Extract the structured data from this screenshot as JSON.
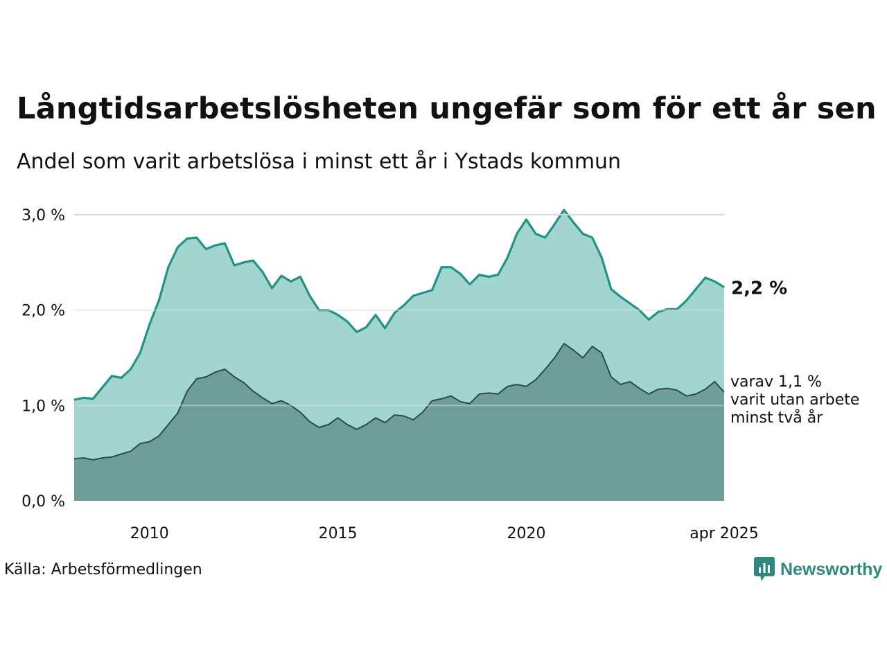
{
  "title": "Långtidsarbetslösheten ungefär som för ett år sen",
  "subtitle": "Andel som varit arbetslösa i minst ett år i Ystads kommun",
  "source": "Källa: Arbetsförmedlingen",
  "logo": {
    "text": "Newsworthy",
    "icon": "bar-chart-speech-bubble-icon",
    "color": "#2e8a7e"
  },
  "colors": {
    "total_line": "#1f9484",
    "total_fill": "#a3d5d0",
    "two_year_line": "#2a4b47",
    "two_year_fill": "#6f9d97",
    "grid": "#d9d9d9"
  },
  "chart_data": {
    "type": "area",
    "xlim": [
      "2008-01",
      "2025-04"
    ],
    "ylim": [
      0,
      3.0
    ],
    "x_ticks": [
      {
        "x": "2010-01",
        "label": "2010"
      },
      {
        "x": "2015-01",
        "label": "2015"
      },
      {
        "x": "2020-01",
        "label": "2020"
      },
      {
        "x": "2025-04",
        "label": "apr 2025"
      }
    ],
    "y_ticks": [
      {
        "y": 0,
        "label": "0,0 %"
      },
      {
        "y": 1,
        "label": "1,0 %"
      },
      {
        "y": 2,
        "label": "2,0 %"
      },
      {
        "y": 3,
        "label": "3,0 %"
      }
    ],
    "grid": true,
    "series": [
      {
        "end_label": "2,2 %",
        "points": [
          [
            "2008-01",
            1.06
          ],
          [
            "2008-04",
            1.08
          ],
          [
            "2008-07",
            1.07
          ],
          [
            "2008-10",
            1.19
          ],
          [
            "2009-01",
            1.31
          ],
          [
            "2009-04",
            1.29
          ],
          [
            "2009-07",
            1.38
          ],
          [
            "2009-10",
            1.55
          ],
          [
            "2010-01",
            1.85
          ],
          [
            "2010-04",
            2.1
          ],
          [
            "2010-07",
            2.45
          ],
          [
            "2010-10",
            2.66
          ],
          [
            "2011-01",
            2.75
          ],
          [
            "2011-04",
            2.76
          ],
          [
            "2011-07",
            2.64
          ],
          [
            "2011-10",
            2.68
          ],
          [
            "2012-01",
            2.7
          ],
          [
            "2012-04",
            2.47
          ],
          [
            "2012-07",
            2.5
          ],
          [
            "2012-10",
            2.52
          ],
          [
            "2013-01",
            2.4
          ],
          [
            "2013-04",
            2.23
          ],
          [
            "2013-07",
            2.36
          ],
          [
            "2013-10",
            2.3
          ],
          [
            "2014-01",
            2.35
          ],
          [
            "2014-04",
            2.15
          ],
          [
            "2014-07",
            2.0
          ],
          [
            "2014-10",
            2.0
          ],
          [
            "2015-01",
            1.95
          ],
          [
            "2015-04",
            1.88
          ],
          [
            "2015-07",
            1.77
          ],
          [
            "2015-10",
            1.82
          ],
          [
            "2016-01",
            1.95
          ],
          [
            "2016-04",
            1.81
          ],
          [
            "2016-07",
            1.97
          ],
          [
            "2016-10",
            2.05
          ],
          [
            "2017-01",
            2.15
          ],
          [
            "2017-04",
            2.18
          ],
          [
            "2017-07",
            2.21
          ],
          [
            "2017-10",
            2.45
          ],
          [
            "2018-01",
            2.45
          ],
          [
            "2018-04",
            2.38
          ],
          [
            "2018-07",
            2.27
          ],
          [
            "2018-10",
            2.37
          ],
          [
            "2019-01",
            2.35
          ],
          [
            "2019-04",
            2.37
          ],
          [
            "2019-07",
            2.55
          ],
          [
            "2019-10",
            2.8
          ],
          [
            "2020-01",
            2.95
          ],
          [
            "2020-04",
            2.8
          ],
          [
            "2020-07",
            2.76
          ],
          [
            "2020-10",
            2.9
          ],
          [
            "2021-01",
            3.05
          ],
          [
            "2021-04",
            2.92
          ],
          [
            "2021-07",
            2.8
          ],
          [
            "2021-10",
            2.76
          ],
          [
            "2022-01",
            2.55
          ],
          [
            "2022-04",
            2.22
          ],
          [
            "2022-07",
            2.14
          ],
          [
            "2022-10",
            2.07
          ],
          [
            "2023-01",
            2.0
          ],
          [
            "2023-04",
            1.9
          ],
          [
            "2023-07",
            1.98
          ],
          [
            "2023-10",
            2.01
          ],
          [
            "2024-01",
            2.01
          ],
          [
            "2024-04",
            2.1
          ],
          [
            "2024-07",
            2.22
          ],
          [
            "2024-10",
            2.34
          ],
          [
            "2025-01",
            2.3
          ],
          [
            "2025-04",
            2.24
          ]
        ]
      },
      {
        "end_label": "varav 1,1 % varit utan arbete minst två år",
        "end_label_lines": [
          "varav 1,1 %",
          "varit utan arbete",
          "minst två år"
        ],
        "points": [
          [
            "2008-01",
            0.44
          ],
          [
            "2008-04",
            0.45
          ],
          [
            "2008-07",
            0.43
          ],
          [
            "2008-10",
            0.45
          ],
          [
            "2009-01",
            0.46
          ],
          [
            "2009-04",
            0.49
          ],
          [
            "2009-07",
            0.52
          ],
          [
            "2009-10",
            0.6
          ],
          [
            "2010-01",
            0.62
          ],
          [
            "2010-04",
            0.68
          ],
          [
            "2010-07",
            0.8
          ],
          [
            "2010-10",
            0.92
          ],
          [
            "2011-01",
            1.15
          ],
          [
            "2011-04",
            1.28
          ],
          [
            "2011-07",
            1.3
          ],
          [
            "2011-10",
            1.35
          ],
          [
            "2012-01",
            1.38
          ],
          [
            "2012-04",
            1.3
          ],
          [
            "2012-07",
            1.24
          ],
          [
            "2012-10",
            1.15
          ],
          [
            "2013-01",
            1.08
          ],
          [
            "2013-04",
            1.02
          ],
          [
            "2013-07",
            1.05
          ],
          [
            "2013-10",
            1.0
          ],
          [
            "2014-01",
            0.93
          ],
          [
            "2014-04",
            0.83
          ],
          [
            "2014-07",
            0.77
          ],
          [
            "2014-10",
            0.8
          ],
          [
            "2015-01",
            0.87
          ],
          [
            "2015-04",
            0.8
          ],
          [
            "2015-07",
            0.75
          ],
          [
            "2015-10",
            0.8
          ],
          [
            "2016-01",
            0.87
          ],
          [
            "2016-04",
            0.82
          ],
          [
            "2016-07",
            0.9
          ],
          [
            "2016-10",
            0.89
          ],
          [
            "2017-01",
            0.85
          ],
          [
            "2017-04",
            0.93
          ],
          [
            "2017-07",
            1.05
          ],
          [
            "2017-10",
            1.07
          ],
          [
            "2018-01",
            1.1
          ],
          [
            "2018-04",
            1.04
          ],
          [
            "2018-07",
            1.02
          ],
          [
            "2018-10",
            1.12
          ],
          [
            "2019-01",
            1.13
          ],
          [
            "2019-04",
            1.12
          ],
          [
            "2019-07",
            1.2
          ],
          [
            "2019-10",
            1.22
          ],
          [
            "2020-01",
            1.2
          ],
          [
            "2020-04",
            1.27
          ],
          [
            "2020-07",
            1.38
          ],
          [
            "2020-10",
            1.5
          ],
          [
            "2021-01",
            1.65
          ],
          [
            "2021-04",
            1.58
          ],
          [
            "2021-07",
            1.5
          ],
          [
            "2021-10",
            1.62
          ],
          [
            "2022-01",
            1.55
          ],
          [
            "2022-04",
            1.3
          ],
          [
            "2022-07",
            1.22
          ],
          [
            "2022-10",
            1.25
          ],
          [
            "2023-01",
            1.18
          ],
          [
            "2023-04",
            1.12
          ],
          [
            "2023-07",
            1.17
          ],
          [
            "2023-10",
            1.18
          ],
          [
            "2024-01",
            1.16
          ],
          [
            "2024-04",
            1.1
          ],
          [
            "2024-07",
            1.12
          ],
          [
            "2024-10",
            1.17
          ],
          [
            "2025-01",
            1.25
          ],
          [
            "2025-04",
            1.14
          ]
        ]
      }
    ]
  }
}
